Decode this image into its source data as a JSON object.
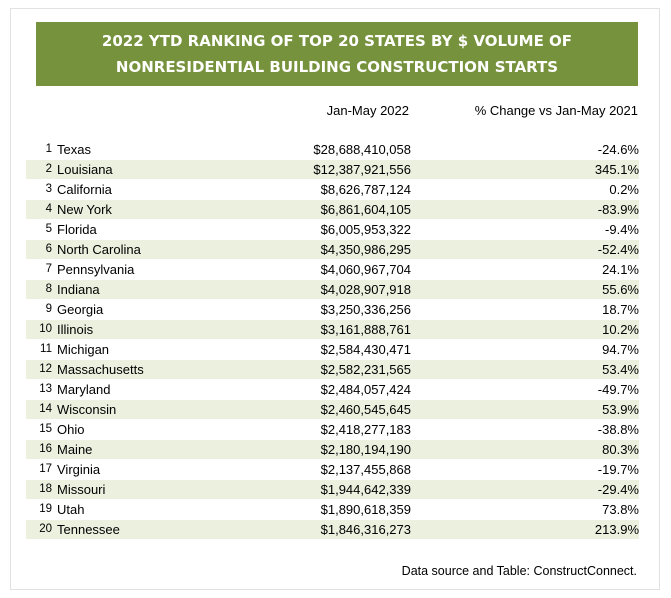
{
  "title_line1": "2022 YTD RANKING OF TOP 20 STATES BY $ VOLUME OF",
  "title_line2": "NONRESIDENTIAL BUILDING CONSTRUCTION STARTS",
  "column_value": "Jan-May 2022",
  "column_change": "% Change vs Jan-May 2021",
  "footnote": "Data source and Table: ConstructConnect.",
  "colors": {
    "header_bg": "#76923c",
    "stripe": "#ecf0df",
    "header_text": "#ffffff"
  },
  "chart_data": {
    "type": "table",
    "columns": [
      "",
      "",
      "Jan-May 2022",
      "% Change vs Jan-May 2021"
    ],
    "rows": [
      {
        "rank": "1",
        "state": "Texas",
        "value": "$28,688,410,058",
        "change": "-24.6%"
      },
      {
        "rank": "2",
        "state": "Louisiana",
        "value": "$12,387,921,556",
        "change": "345.1%"
      },
      {
        "rank": "3",
        "state": "California",
        "value": "$8,626,787,124",
        "change": "0.2%"
      },
      {
        "rank": "4",
        "state": "New York",
        "value": "$6,861,604,105",
        "change": "-83.9%"
      },
      {
        "rank": "5",
        "state": "Florida",
        "value": "$6,005,953,322",
        "change": "-9.4%"
      },
      {
        "rank": "6",
        "state": "North Carolina",
        "value": "$4,350,986,295",
        "change": "-52.4%"
      },
      {
        "rank": "7",
        "state": "Pennsylvania",
        "value": "$4,060,967,704",
        "change": "24.1%"
      },
      {
        "rank": "8",
        "state": "Indiana",
        "value": "$4,028,907,918",
        "change": "55.6%"
      },
      {
        "rank": "9",
        "state": "Georgia",
        "value": "$3,250,336,256",
        "change": "18.7%"
      },
      {
        "rank": "10",
        "state": "Illinois",
        "value": "$3,161,888,761",
        "change": "10.2%"
      },
      {
        "rank": "11",
        "state": "Michigan",
        "value": "$2,584,430,471",
        "change": "94.7%"
      },
      {
        "rank": "12",
        "state": "Massachusetts",
        "value": "$2,582,231,565",
        "change": "53.4%"
      },
      {
        "rank": "13",
        "state": "Maryland",
        "value": "$2,484,057,424",
        "change": "-49.7%"
      },
      {
        "rank": "14",
        "state": "Wisconsin",
        "value": "$2,460,545,645",
        "change": "53.9%"
      },
      {
        "rank": "15",
        "state": "Ohio",
        "value": "$2,418,277,183",
        "change": "-38.8%"
      },
      {
        "rank": "16",
        "state": "Maine",
        "value": "$2,180,194,190",
        "change": "80.3%"
      },
      {
        "rank": "17",
        "state": "Virginia",
        "value": "$2,137,455,868",
        "change": "-19.7%"
      },
      {
        "rank": "18",
        "state": "Missouri",
        "value": "$1,944,642,339",
        "change": "-29.4%"
      },
      {
        "rank": "19",
        "state": "Utah",
        "value": "$1,890,618,359",
        "change": "73.8%"
      },
      {
        "rank": "20",
        "state": "Tennessee",
        "value": "$1,846,316,273",
        "change": "213.9%"
      }
    ]
  }
}
